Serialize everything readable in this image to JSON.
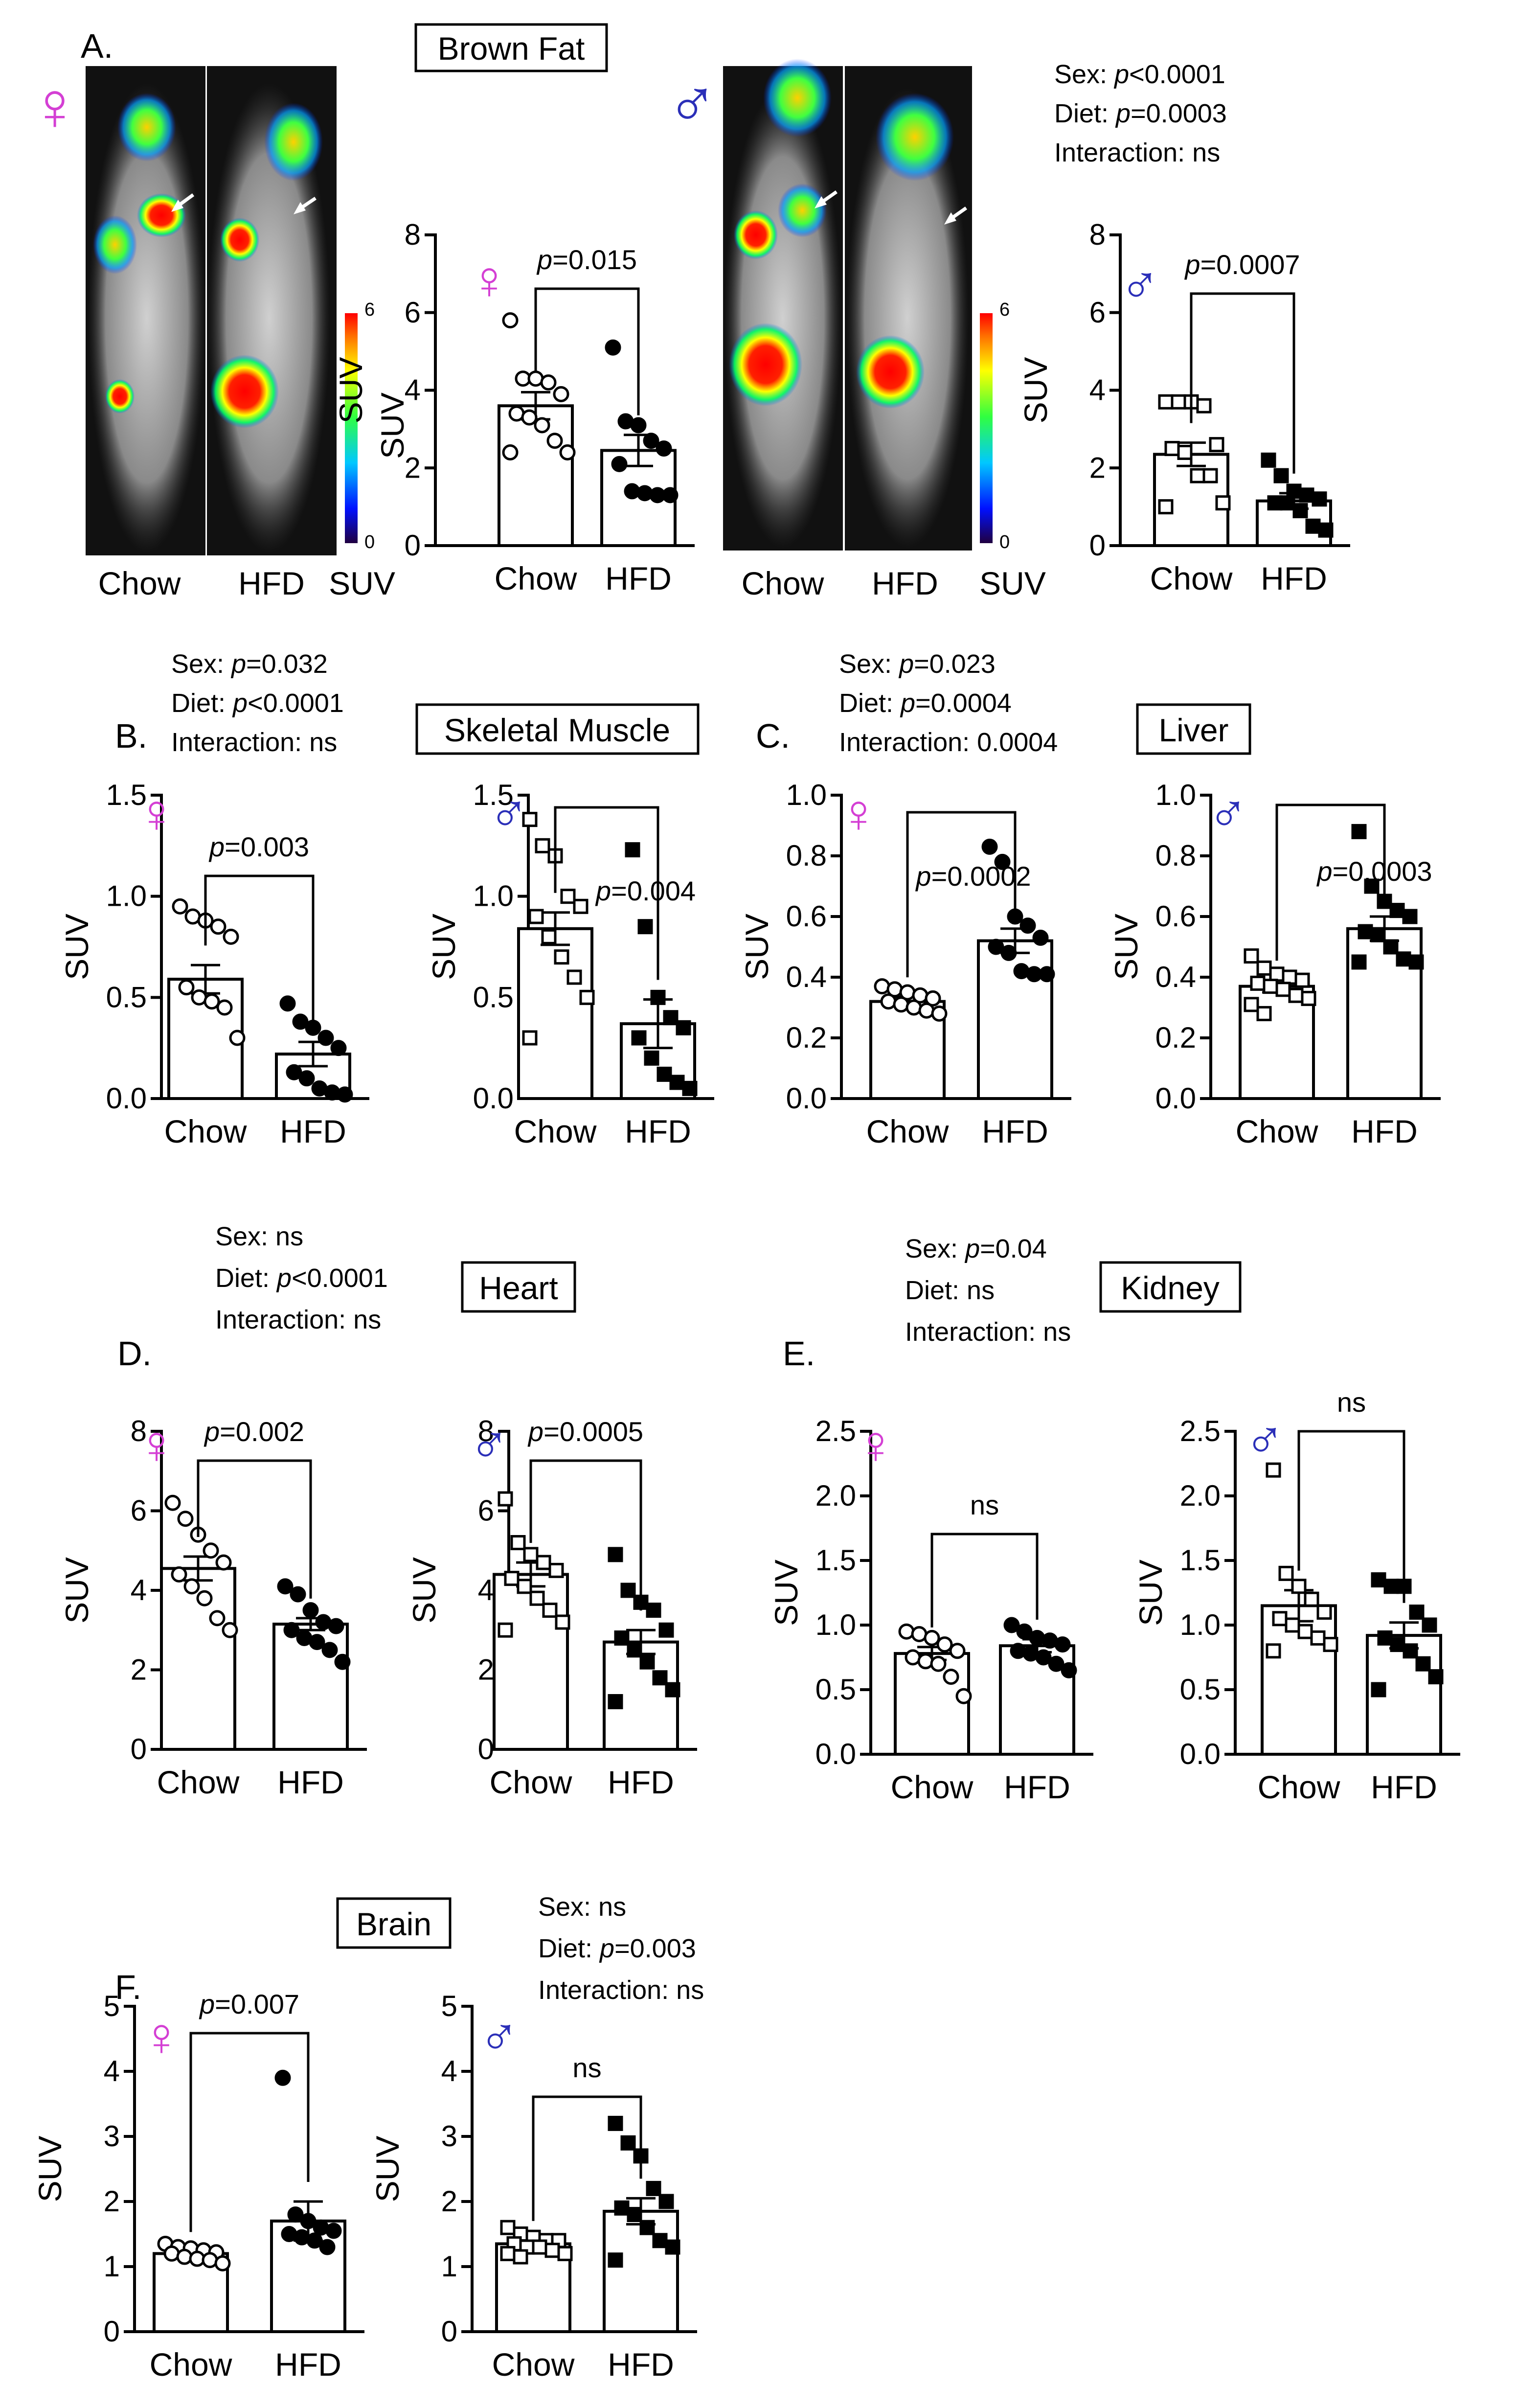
{
  "figure": {
    "panel_letters": {
      "A": "A.",
      "B": "B.",
      "C": "C.",
      "D": "D.",
      "E": "E.",
      "F": "F."
    },
    "titles": {
      "brown_fat": "Brown Fat",
      "skeletal_muscle": "Skeletal Muscle",
      "liver": "Liver",
      "heart": "Heart",
      "kidney": "Kidney",
      "brain": "Brain"
    },
    "female_symbol": "♀",
    "male_symbol": "♂",
    "colors": {
      "female": "#d43fd4",
      "male": "#2b2fb8",
      "arrow": "#ffffff",
      "bar_stroke": "#000000"
    },
    "pet_labels": {
      "chow": "Chow",
      "hfd": "HFD",
      "suv": "SUV",
      "scale_max": "6",
      "scale_min": "0"
    },
    "stats": {
      "brown_fat": {
        "sex_label": "Sex: ",
        "sex_p": "p",
        "sex_value": "<0.0001",
        "diet_label": "Diet: ",
        "diet_p": "p",
        "diet_value": "=0.0003",
        "interaction": "Interaction: ns"
      },
      "skeletal_muscle": {
        "sex_label": "Sex: ",
        "sex_p": "p",
        "sex_value": "=0.032",
        "diet_label": "Diet: ",
        "diet_p": "p",
        "diet_value": "<0.0001",
        "interaction": "Interaction: ns"
      },
      "liver": {
        "sex_label": "Sex: ",
        "sex_p": "p",
        "sex_value": "=0.023",
        "diet_label": "Diet: ",
        "diet_p": "p",
        "diet_value": "=0.0004",
        "interaction": "Interaction: 0.0004"
      },
      "heart": {
        "sex_line": "Sex: ns",
        "diet_label": "Diet: ",
        "diet_p": "p",
        "diet_value": "<0.0001",
        "interaction": "Interaction: ns"
      },
      "kidney": {
        "sex_label": "Sex: ",
        "sex_p": "p",
        "sex_value": "=0.04",
        "diet_line": "Diet: ns",
        "interaction": "Interaction: ns"
      },
      "brain": {
        "sex_line": "Sex: ns",
        "diet_label": "Diet: ",
        "diet_p": "p",
        "diet_value": "=0.003",
        "interaction": "Interaction: ns"
      }
    }
  },
  "chart_data": [
    {
      "id": "bat_f",
      "type": "bar",
      "title": "Brown Fat",
      "sex": "female",
      "ylabel": "SUV",
      "categories": [
        "Chow",
        "HFD"
      ],
      "means": [
        3.6,
        2.45
      ],
      "sem": [
        0.35,
        0.4
      ],
      "ylim": [
        0,
        8
      ],
      "yticks": [
        0,
        2,
        4,
        6,
        8
      ],
      "sig_p": "p",
      "sig_value": "=0.015",
      "points": [
        [
          5.8,
          4.3,
          4.3,
          4.2,
          3.9,
          3.4,
          3.3,
          3.1,
          2.7,
          2.4,
          2.4
        ],
        [
          5.1,
          3.2,
          3.1,
          2.7,
          2.5,
          2.1,
          1.4,
          1.35,
          1.3,
          1.3
        ]
      ]
    },
    {
      "id": "bat_m",
      "type": "bar",
      "title": "Brown Fat",
      "sex": "male",
      "ylabel": "SUV",
      "categories": [
        "Chow",
        "HFD"
      ],
      "means": [
        2.35,
        1.15
      ],
      "sem": [
        0.3,
        0.2
      ],
      "ylim": [
        0,
        8
      ],
      "yticks": [
        0,
        2,
        4,
        6,
        8
      ],
      "sig_p": "p",
      "sig_value": "=0.0007",
      "points": [
        [
          3.7,
          3.7,
          3.7,
          3.6,
          2.6,
          2.5,
          2.4,
          1.8,
          1.8,
          1.1,
          1.0
        ],
        [
          2.2,
          1.8,
          1.4,
          1.3,
          1.2,
          1.1,
          1.1,
          0.9,
          0.5,
          0.4
        ]
      ]
    },
    {
      "id": "sm_f",
      "type": "bar",
      "title": "Skeletal Muscle",
      "sex": "female",
      "ylabel": "SUV",
      "categories": [
        "Chow",
        "HFD"
      ],
      "means": [
        0.59,
        0.22
      ],
      "sem": [
        0.07,
        0.06
      ],
      "ylim": [
        0,
        1.5
      ],
      "yticks": [
        0.0,
        0.5,
        1.0,
        1.5
      ],
      "sig_p": "p",
      "sig_value": "=0.003",
      "points": [
        [
          0.95,
          0.9,
          0.88,
          0.85,
          0.8,
          0.55,
          0.5,
          0.48,
          0.45,
          0.3
        ],
        [
          0.47,
          0.38,
          0.35,
          0.3,
          0.25,
          0.13,
          0.1,
          0.05,
          0.03,
          0.02
        ]
      ]
    },
    {
      "id": "sm_m",
      "type": "bar",
      "title": "Skeletal Muscle",
      "sex": "male",
      "ylabel": "SUV",
      "categories": [
        "Chow",
        "HFD"
      ],
      "means": [
        0.84,
        0.37
      ],
      "sem": [
        0.08,
        0.12
      ],
      "ylim": [
        0,
        1.5
      ],
      "yticks": [
        0.0,
        0.5,
        1.0,
        1.5
      ],
      "sig_p": "p",
      "sig_value": "=0.004",
      "points": [
        [
          1.38,
          1.25,
          1.2,
          1.0,
          0.95,
          0.9,
          0.8,
          0.7,
          0.6,
          0.5,
          0.3
        ],
        [
          1.23,
          0.85,
          0.5,
          0.4,
          0.35,
          0.3,
          0.2,
          0.12,
          0.08,
          0.05
        ]
      ]
    },
    {
      "id": "liver_f",
      "type": "bar",
      "title": "Liver",
      "sex": "female",
      "ylabel": "SUV",
      "categories": [
        "Chow",
        "HFD"
      ],
      "means": [
        0.32,
        0.52
      ],
      "sem": [
        0.015,
        0.04
      ],
      "ylim": [
        0,
        1.0
      ],
      "yticks": [
        0.0,
        0.2,
        0.4,
        0.6,
        0.8,
        1.0
      ],
      "sig_p": "p",
      "sig_value": "=0.0002",
      "points": [
        [
          0.37,
          0.36,
          0.35,
          0.34,
          0.33,
          0.32,
          0.31,
          0.3,
          0.29,
          0.28
        ],
        [
          0.83,
          0.78,
          0.6,
          0.57,
          0.53,
          0.5,
          0.48,
          0.42,
          0.41,
          0.41
        ]
      ]
    },
    {
      "id": "liver_m",
      "type": "bar",
      "title": "Liver",
      "sex": "male",
      "ylabel": "SUV",
      "categories": [
        "Chow",
        "HFD"
      ],
      "means": [
        0.37,
        0.56
      ],
      "sem": [
        0.02,
        0.04
      ],
      "ylim": [
        0,
        1.0
      ],
      "yticks": [
        0.0,
        0.2,
        0.4,
        0.6,
        0.8,
        1.0
      ],
      "sig_p": "p",
      "sig_value": "=0.0003",
      "points": [
        [
          0.47,
          0.43,
          0.41,
          0.4,
          0.39,
          0.38,
          0.37,
          0.36,
          0.34,
          0.33,
          0.31,
          0.28
        ],
        [
          0.88,
          0.7,
          0.65,
          0.62,
          0.6,
          0.55,
          0.54,
          0.5,
          0.46,
          0.45,
          0.45
        ]
      ]
    },
    {
      "id": "heart_f",
      "type": "bar",
      "title": "Heart",
      "sex": "female",
      "ylabel": "SUV",
      "categories": [
        "Chow",
        "HFD"
      ],
      "means": [
        4.55,
        3.15
      ],
      "sem": [
        0.3,
        0.15
      ],
      "ylim": [
        0,
        8
      ],
      "yticks": [
        0,
        2,
        4,
        6,
        8
      ],
      "sig_p": "p",
      "sig_value": "=0.002",
      "points": [
        [
          6.2,
          5.8,
          5.4,
          5.0,
          4.7,
          4.4,
          4.1,
          3.8,
          3.3,
          3.0
        ],
        [
          4.1,
          3.9,
          3.5,
          3.2,
          3.1,
          3.0,
          2.8,
          2.7,
          2.5,
          2.2
        ]
      ]
    },
    {
      "id": "heart_m",
      "type": "bar",
      "title": "Heart",
      "sex": "male",
      "ylabel": "SUV",
      "categories": [
        "Chow",
        "HFD"
      ],
      "means": [
        4.4,
        2.7
      ],
      "sem": [
        0.3,
        0.3
      ],
      "ylim": [
        0,
        8
      ],
      "yticks": [
        0,
        2,
        4,
        6,
        8
      ],
      "sig_p": "p",
      "sig_value": "=0.0005",
      "points": [
        [
          6.3,
          5.2,
          4.9,
          4.7,
          4.5,
          4.3,
          4.1,
          3.8,
          3.5,
          3.2,
          3.0
        ],
        [
          4.9,
          4.0,
          3.7,
          3.5,
          3.0,
          2.8,
          2.5,
          2.2,
          1.8,
          1.5,
          1.2
        ]
      ]
    },
    {
      "id": "kidney_f",
      "type": "bar",
      "title": "Kidney",
      "sex": "female",
      "ylabel": "SUV",
      "categories": [
        "Chow",
        "HFD"
      ],
      "means": [
        0.78,
        0.84
      ],
      "sem": [
        0.05,
        0.05
      ],
      "ylim": [
        0,
        2.5
      ],
      "yticks": [
        0.0,
        0.5,
        1.0,
        1.5,
        2.0,
        2.5
      ],
      "sig_p": "",
      "sig_value": "ns",
      "points": [
        [
          0.95,
          0.93,
          0.9,
          0.85,
          0.8,
          0.75,
          0.72,
          0.7,
          0.6,
          0.45
        ],
        [
          1.0,
          0.95,
          0.9,
          0.88,
          0.85,
          0.8,
          0.78,
          0.75,
          0.7,
          0.65
        ]
      ]
    },
    {
      "id": "kidney_m",
      "type": "bar",
      "title": "Kidney",
      "sex": "male",
      "ylabel": "SUV",
      "categories": [
        "Chow",
        "HFD"
      ],
      "means": [
        1.15,
        0.92
      ],
      "sem": [
        0.12,
        0.1
      ],
      "ylim": [
        0,
        2.5
      ],
      "yticks": [
        0.0,
        0.5,
        1.0,
        1.5,
        2.0,
        2.5
      ],
      "sig_p": "",
      "sig_value": "ns",
      "points": [
        [
          2.2,
          1.4,
          1.3,
          1.2,
          1.1,
          1.05,
          1.0,
          0.95,
          0.9,
          0.85,
          0.8
        ],
        [
          1.35,
          1.3,
          1.3,
          1.1,
          1.0,
          0.9,
          0.85,
          0.8,
          0.7,
          0.6,
          0.5
        ]
      ]
    },
    {
      "id": "brain_f",
      "type": "bar",
      "title": "Brain",
      "sex": "female",
      "ylabel": "SUV",
      "categories": [
        "Chow",
        "HFD"
      ],
      "means": [
        1.2,
        1.7
      ],
      "sem": [
        0.03,
        0.3
      ],
      "ylim": [
        0,
        5
      ],
      "yticks": [
        0,
        1,
        2,
        3,
        4,
        5
      ],
      "sig_p": "p",
      "sig_value": "=0.007",
      "points": [
        [
          1.35,
          1.3,
          1.28,
          1.25,
          1.22,
          1.2,
          1.15,
          1.12,
          1.1,
          1.05
        ],
        [
          3.9,
          1.8,
          1.7,
          1.6,
          1.55,
          1.5,
          1.45,
          1.4,
          1.3
        ]
      ]
    },
    {
      "id": "brain_m",
      "type": "bar",
      "title": "Brain",
      "sex": "male",
      "ylabel": "SUV",
      "categories": [
        "Chow",
        "HFD"
      ],
      "means": [
        1.35,
        1.85
      ],
      "sem": [
        0.05,
        0.2
      ],
      "ylim": [
        0,
        5
      ],
      "yticks": [
        0,
        1,
        2,
        3,
        4,
        5
      ],
      "sig_p": "",
      "sig_value": "ns",
      "points": [
        [
          1.6,
          1.5,
          1.45,
          1.4,
          1.4,
          1.35,
          1.3,
          1.3,
          1.25,
          1.2,
          1.2,
          1.15
        ],
        [
          3.2,
          2.9,
          2.7,
          2.2,
          2.0,
          1.9,
          1.8,
          1.6,
          1.4,
          1.3,
          1.1
        ]
      ]
    }
  ]
}
